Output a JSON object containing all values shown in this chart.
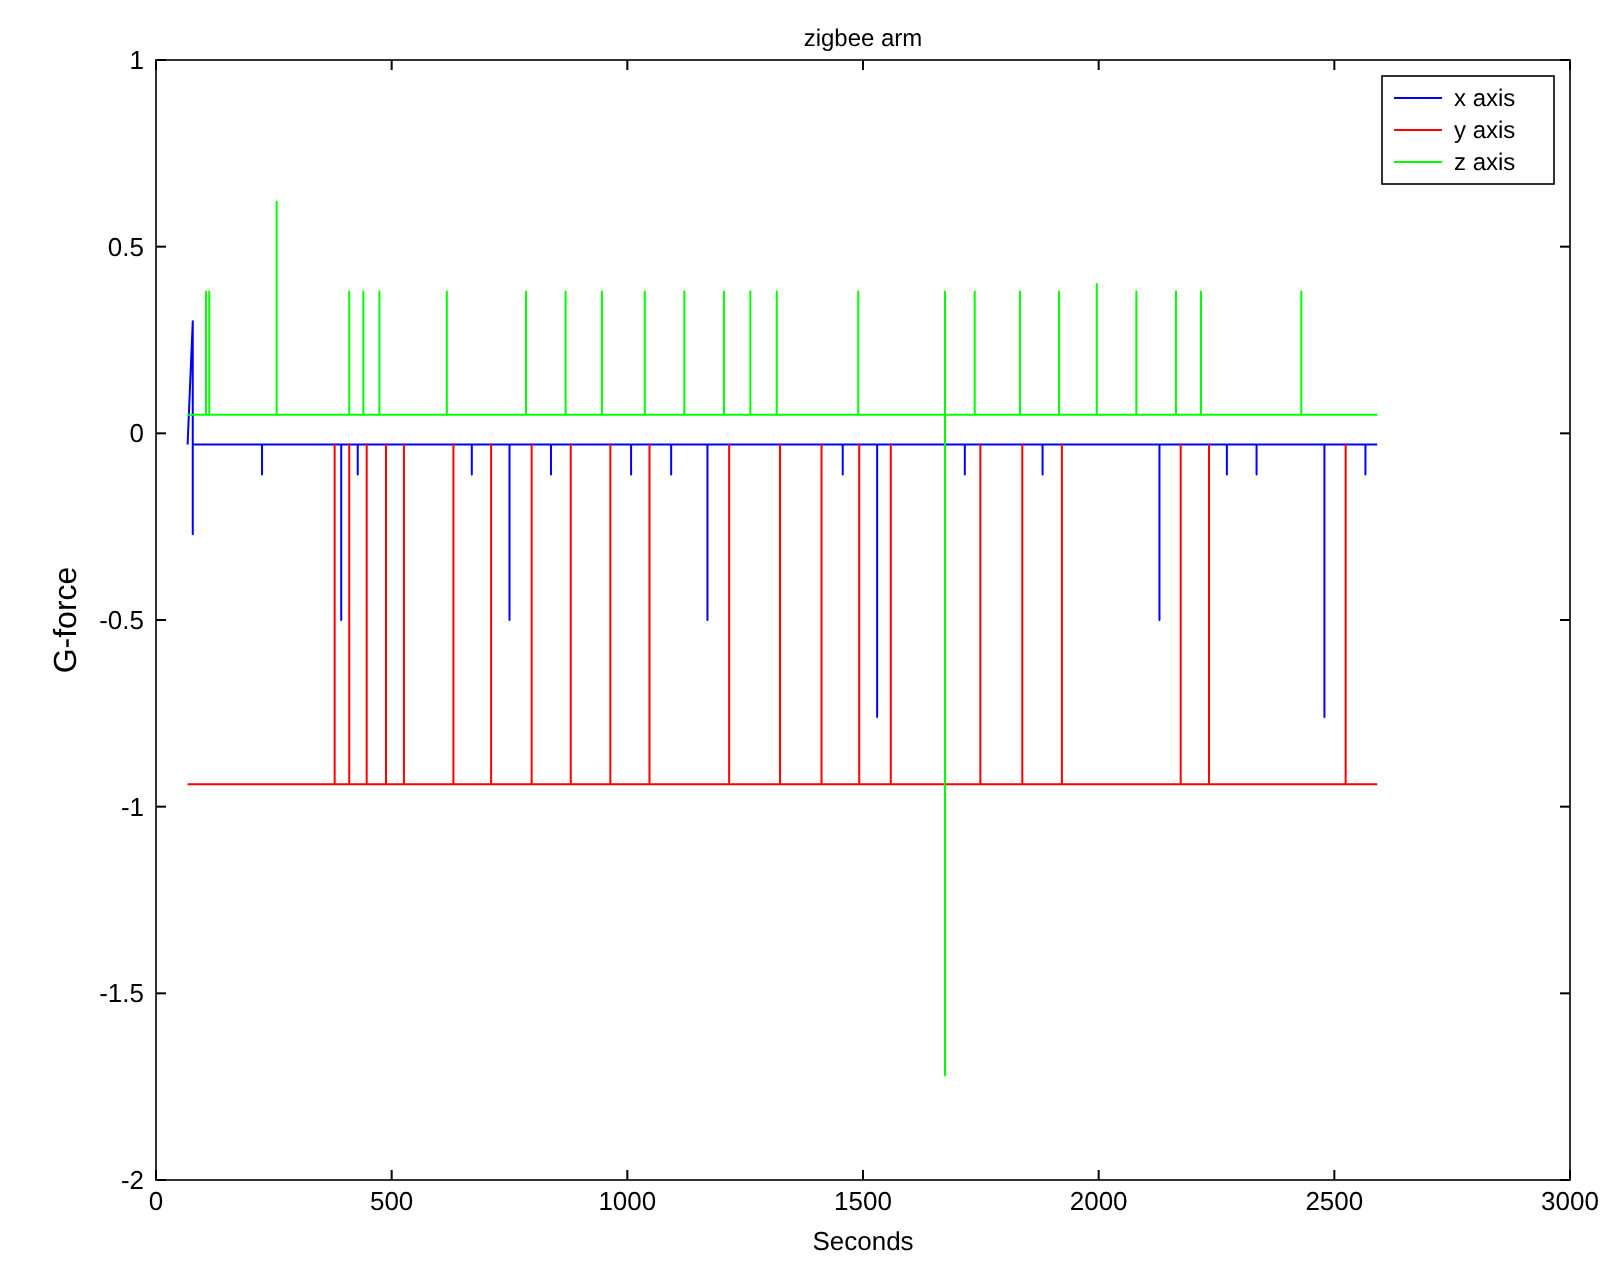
{
  "chart_data": {
    "type": "line",
    "title": "zigbee arm",
    "xlabel": "Seconds",
    "ylabel": "G-force",
    "xlim": [
      0,
      3000
    ],
    "xticks": [
      0,
      500,
      1000,
      1500,
      2000,
      2500,
      3000
    ],
    "ylim": [
      -2,
      1
    ],
    "yticks": [
      -2,
      -1.5,
      -1,
      -0.5,
      0,
      0.5,
      1
    ],
    "grid": false,
    "legend": "top right",
    "line_style": "solid",
    "marker": "none",
    "series": [
      {
        "name": "x axis",
        "color": "#0000ff",
        "x": [
          67,
          78,
          78,
          78,
          225,
          225,
          225,
          393,
          393,
          393,
          428,
          428,
          428,
          670,
          670,
          670,
          750,
          750,
          750,
          838,
          838,
          838,
          1008,
          1008,
          1008,
          1093,
          1093,
          1093,
          1170,
          1170,
          1170,
          1457,
          1457,
          1457,
          1530,
          1530,
          1530,
          1716,
          1716,
          1716,
          1881,
          1881,
          1881,
          2129,
          2129,
          2129,
          2272,
          2272,
          2272,
          2335,
          2335,
          2335,
          2479,
          2479,
          2479,
          2566,
          2566,
          2566,
          2591
        ],
        "values": [
          -0.03,
          0.3,
          -0.27,
          -0.03,
          -0.03,
          -0.11,
          -0.03,
          -0.03,
          -0.5,
          -0.03,
          -0.03,
          -0.11,
          -0.03,
          -0.03,
          -0.11,
          -0.03,
          -0.03,
          -0.5,
          -0.03,
          -0.03,
          -0.11,
          -0.03,
          -0.03,
          -0.11,
          -0.03,
          -0.03,
          -0.11,
          -0.03,
          -0.03,
          -0.5,
          -0.03,
          -0.03,
          -0.11,
          -0.03,
          -0.03,
          -0.76,
          -0.03,
          -0.03,
          -0.11,
          -0.03,
          -0.03,
          -0.11,
          -0.03,
          -0.03,
          -0.5,
          -0.03,
          -0.03,
          -0.11,
          -0.03,
          -0.03,
          -0.11,
          -0.03,
          -0.03,
          -0.76,
          -0.03,
          -0.03,
          -0.11,
          -0.03,
          -0.03
        ]
      },
      {
        "name": "y axis",
        "color": "#ff0000",
        "x": [
          67,
          379,
          379,
          379,
          410,
          410,
          410,
          447,
          447,
          447,
          488,
          488,
          488,
          526,
          526,
          526,
          631,
          631,
          631,
          711,
          711,
          711,
          797,
          797,
          797,
          880,
          880,
          880,
          964,
          964,
          964,
          1047,
          1047,
          1047,
          1216,
          1216,
          1216,
          1324,
          1324,
          1324,
          1412,
          1412,
          1412,
          1492,
          1492,
          1492,
          1559,
          1559,
          1559,
          1749,
          1749,
          1749,
          1838,
          1838,
          1838,
          1922,
          1922,
          1922,
          2174,
          2174,
          2174,
          2234,
          2234,
          2234,
          2524,
          2524,
          2524,
          2591
        ],
        "values": [
          -0.94,
          -0.94,
          -0.03,
          -0.94,
          -0.94,
          -0.03,
          -0.94,
          -0.94,
          -0.03,
          -0.94,
          -0.94,
          -0.03,
          -0.94,
          -0.94,
          -0.03,
          -0.94,
          -0.94,
          -0.03,
          -0.94,
          -0.94,
          -0.03,
          -0.94,
          -0.94,
          -0.03,
          -0.94,
          -0.94,
          -0.03,
          -0.94,
          -0.94,
          -0.03,
          -0.94,
          -0.94,
          -0.03,
          -0.94,
          -0.94,
          -0.03,
          -0.94,
          -0.94,
          -0.03,
          -0.94,
          -0.94,
          -0.03,
          -0.94,
          -0.94,
          -0.03,
          -0.94,
          -0.94,
          -0.03,
          -0.94,
          -0.94,
          -0.03,
          -0.94,
          -0.94,
          -0.03,
          -0.94,
          -0.94,
          -0.03,
          -0.94,
          -0.94,
          -0.03,
          -0.94,
          -0.94,
          -0.03,
          -0.94,
          -0.94,
          -0.03,
          -0.94,
          -0.94
        ]
      },
      {
        "name": "z axis",
        "color": "#00ff00",
        "x": [
          67,
          106,
          106,
          106,
          113,
          113,
          113,
          256,
          256,
          256,
          410,
          410,
          410,
          440,
          440,
          440,
          474,
          474,
          474,
          617,
          617,
          617,
          785,
          785,
          785,
          869,
          869,
          869,
          946,
          946,
          946,
          1037,
          1037,
          1037,
          1121,
          1121,
          1121,
          1205,
          1205,
          1205,
          1261,
          1261,
          1261,
          1317,
          1317,
          1317,
          1490,
          1490,
          1490,
          1674,
          1674,
          1674,
          1674,
          1737,
          1737,
          1737,
          1833,
          1833,
          1833,
          1916,
          1916,
          1916,
          1996,
          1996,
          1996,
          2080,
          2080,
          2080,
          2164,
          2164,
          2164,
          2217,
          2217,
          2217,
          2430,
          2430,
          2430,
          2591
        ],
        "values": [
          0.05,
          0.05,
          0.38,
          0.05,
          0.05,
          0.38,
          0.05,
          0.05,
          0.62,
          0.05,
          0.05,
          0.38,
          0.05,
          0.05,
          0.38,
          0.05,
          0.05,
          0.38,
          0.05,
          0.05,
          0.38,
          0.05,
          0.05,
          0.38,
          0.05,
          0.05,
          0.38,
          0.05,
          0.05,
          0.38,
          0.05,
          0.05,
          0.38,
          0.05,
          0.05,
          0.38,
          0.05,
          0.05,
          0.38,
          0.05,
          0.05,
          0.38,
          0.05,
          0.05,
          0.38,
          0.05,
          0.05,
          0.38,
          0.05,
          0.05,
          0.38,
          -1.72,
          0.05,
          0.05,
          0.38,
          0.05,
          0.05,
          0.38,
          0.05,
          0.05,
          0.38,
          0.05,
          0.05,
          0.4,
          0.05,
          0.05,
          0.38,
          0.05,
          0.05,
          0.38,
          0.05,
          0.05,
          0.38,
          0.05,
          0.05,
          0.38,
          0.05,
          0.05
        ]
      }
    ]
  }
}
